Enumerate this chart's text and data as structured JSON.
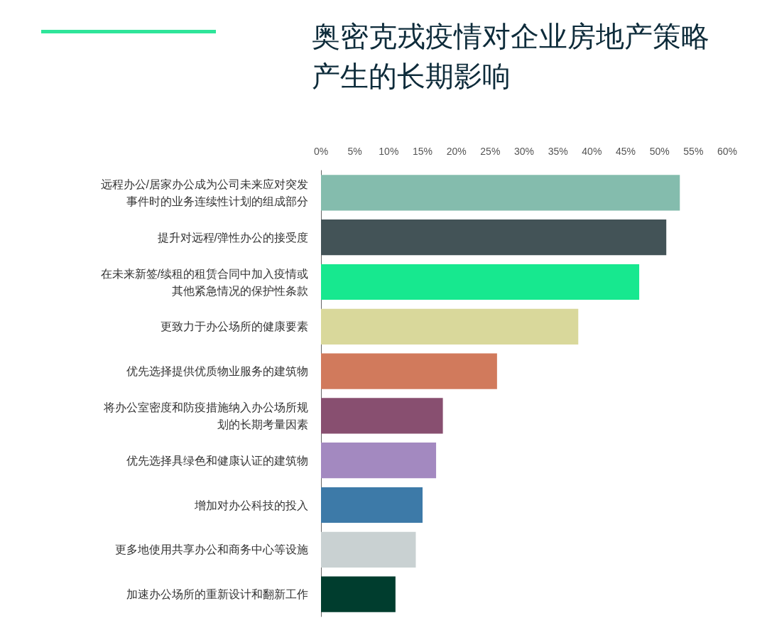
{
  "chart_data": {
    "type": "bar",
    "orientation": "horizontal",
    "title": "奥密克戎疫情对企业房地产策略产生的长期影响",
    "categories": [
      "远程办公/居家办公成为公司未来应对突发事件时的业务连续性计划的组成部分",
      "提升对远程/弹性办公的接受度",
      "在未来新签/续租的租赁合同中加入疫情或其他紧急情况的保护性条款",
      "更致力于办公场所的健康要素",
      "优先选择提供优质物业服务的建筑物",
      "将办公室密度和防疫措施纳入办公场所规划的长期考量因素",
      "优先选择具绿色和健康认证的建筑物",
      "增加对办公科技的投入",
      "更多地使用共享办公和商务中心等设施",
      "加速办公场所的重新设计和翻新工作"
    ],
    "values": [
      53,
      51,
      47,
      38,
      26,
      18,
      17,
      15,
      14,
      11
    ],
    "colors": [
      "#84bcad",
      "#435357",
      "#17e88f",
      "#d9d89b",
      "#d17a5c",
      "#884f70",
      "#a389c0",
      "#3d7aa8",
      "#c9d1d2",
      "#003d2e"
    ],
    "xlim": [
      0,
      60
    ],
    "xticks": [
      {
        "value": 0,
        "label": "0%"
      },
      {
        "value": 5,
        "label": "5%"
      },
      {
        "value": 10,
        "label": "10%"
      },
      {
        "value": 15,
        "label": "15%"
      },
      {
        "value": 20,
        "label": "20%"
      },
      {
        "value": 25,
        "label": "25%"
      },
      {
        "value": 30,
        "label": "30%"
      },
      {
        "value": 35,
        "label": "35%"
      },
      {
        "value": 40,
        "label": "40%"
      },
      {
        "value": 45,
        "label": "45%"
      },
      {
        "value": 50,
        "label": "50%"
      },
      {
        "value": 55,
        "label": "55%"
      },
      {
        "value": 60,
        "label": "60%"
      }
    ],
    "grid": false
  }
}
